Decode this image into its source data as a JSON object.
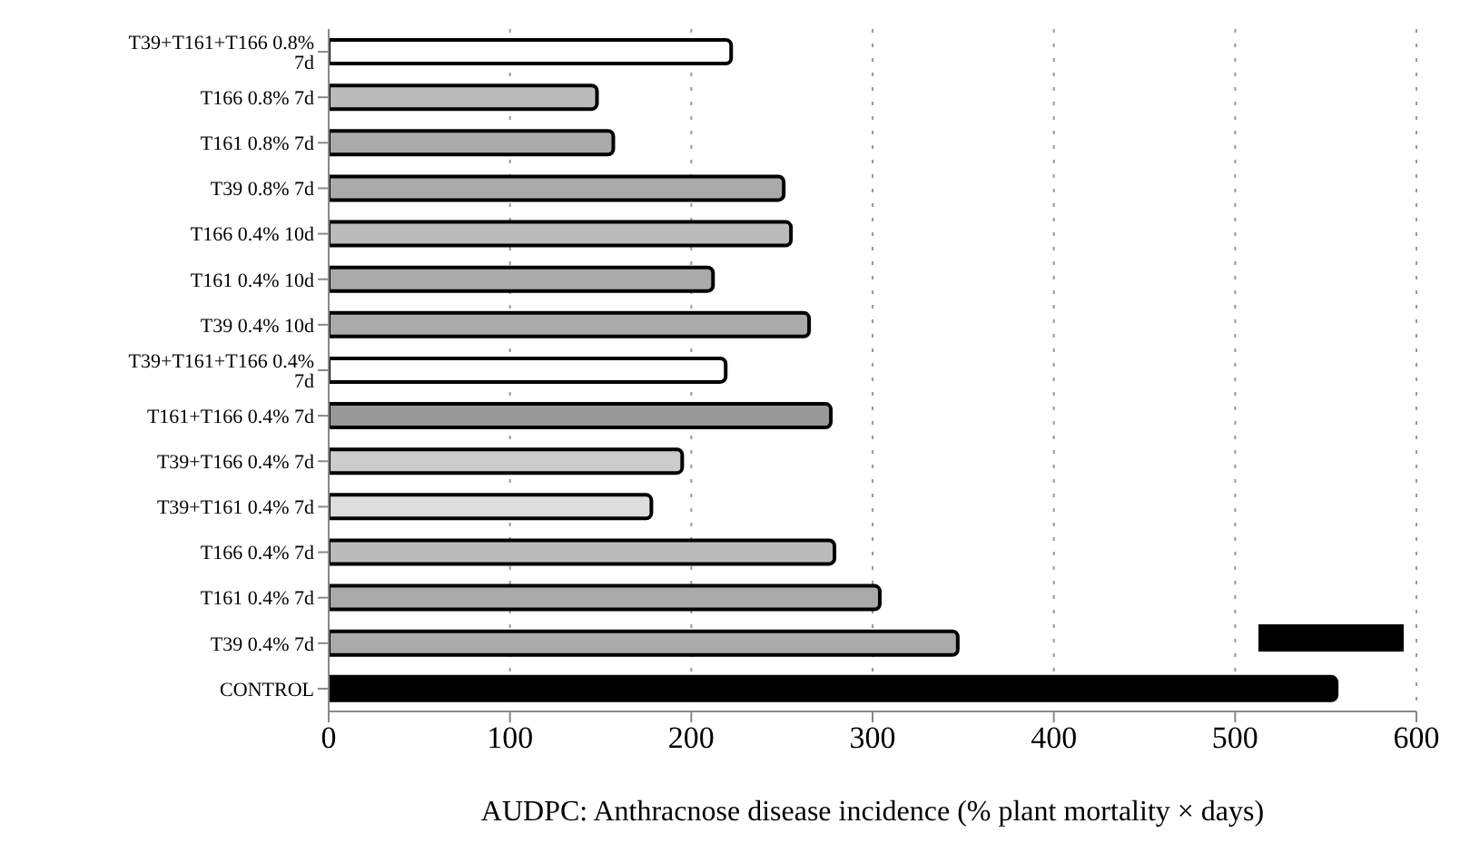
{
  "chart_data": {
    "type": "bar",
    "orientation": "horizontal",
    "xlabel": "AUDPC: Anthracnose disease incidence (% plant mortality × days)",
    "categories": [
      "T39+T161+T166 0.8%  7d",
      "T166 0.8% 7d",
      "T161 0.8% 7d",
      "T39   0.8% 7d",
      "T166 0.4% 10d",
      "T161 0.4% 10d",
      "T39   0.4% 10d",
      "T39+T161+T166 0.4% 7d",
      "T161+T166 0.4% 7d",
      "T39+T166   0.4% 7d",
      "T39+T161   0.4% 7d",
      "T166 0.4% 7d",
      "T161 0.4% 7d",
      "T39   0.4% 7d",
      "CONTROL"
    ],
    "values": [
      222,
      148,
      157,
      251,
      255,
      212,
      265,
      219,
      277,
      195,
      178,
      279,
      304,
      347,
      556
    ],
    "colors": [
      "#ffffff",
      "#bbbbbb",
      "#aaaaaa",
      "#aaaaaa",
      "#bbbbbb",
      "#aaaaaa",
      "#aaaaaa",
      "#ffffff",
      "#999999",
      "#cccccc",
      "#dddddd",
      "#bbbbbb",
      "#aaaaaa",
      "#aaaaaa",
      "#000000"
    ],
    "xlim": [
      0,
      600
    ],
    "xticks": [
      0,
      100,
      200,
      300,
      400,
      500,
      600
    ],
    "grid": "x"
  }
}
